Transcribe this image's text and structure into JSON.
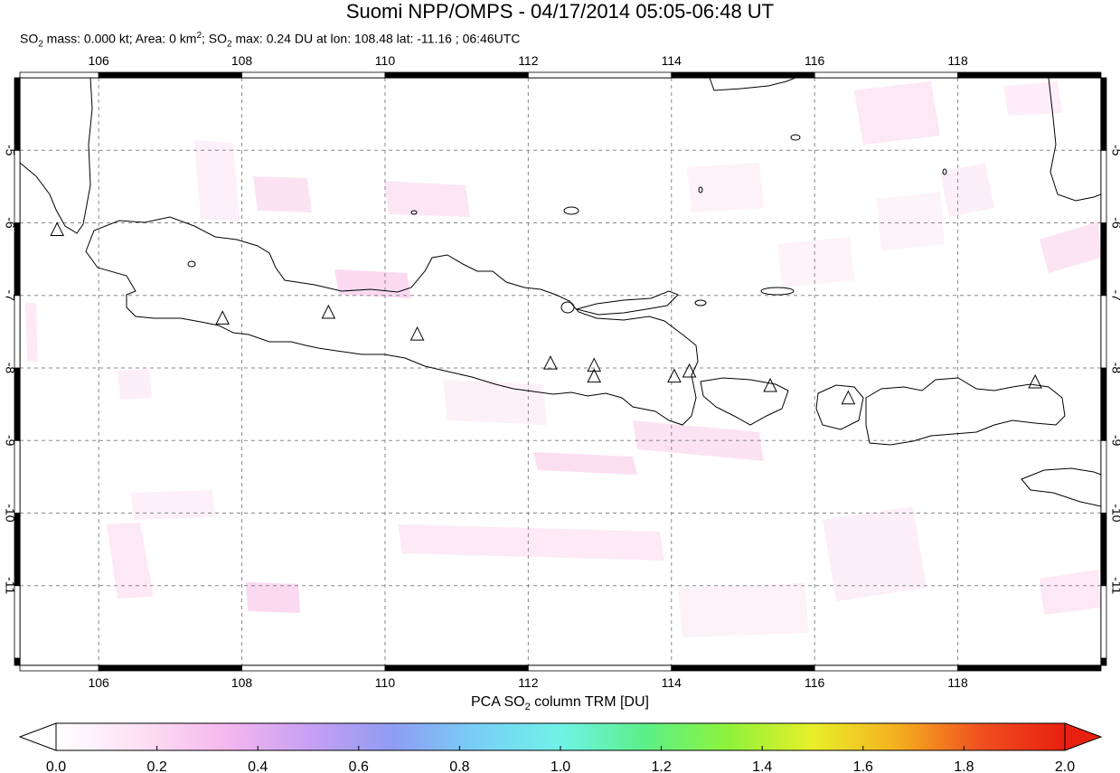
{
  "header": {
    "title": "Suomi NPP/OMPS - 04/17/2014 05:05-06:48 UT",
    "mass_label": "SO",
    "mass_sub": "2",
    "mass_text": " mass: 0.000 kt; Area: 0 km",
    "area_sup": "2",
    "sep": "; SO",
    "max_sub": "2",
    "max_text": " max: 0.24 DU at lon: 108.48 lat: -11.16 ; 06:46UTC"
  },
  "map": {
    "lon_range": [
      104.9,
      120.0
    ],
    "lat_range": [
      -12.1,
      -4.0
    ],
    "lon_ticks": [
      "106",
      "108",
      "110",
      "112",
      "114",
      "116",
      "118"
    ],
    "lat_ticks": [
      "-5",
      "-6",
      "-7",
      "-8",
      "-9",
      "-10",
      "-11"
    ],
    "grid": true,
    "volcano_icon": "triangle-icon",
    "volcanoes": [
      [
        105.42,
        -6.1
      ],
      [
        107.73,
        -7.32
      ],
      [
        109.21,
        -7.24
      ],
      [
        110.45,
        -7.54
      ],
      [
        112.31,
        -7.94
      ],
      [
        112.92,
        -7.97
      ],
      [
        112.92,
        -8.12
      ],
      [
        114.04,
        -8.12
      ],
      [
        114.25,
        -8.05
      ],
      [
        115.38,
        -8.25
      ],
      [
        116.47,
        -8.42
      ],
      [
        119.08,
        -8.2
      ]
    ]
  },
  "colorbar": {
    "title_prefix": "PCA SO",
    "title_sub": "2",
    "title_suffix": " column TRM [DU]",
    "ticks": [
      "0.0",
      "0.2",
      "0.4",
      "0.6",
      "0.8",
      "1.0",
      "1.2",
      "1.4",
      "1.6",
      "1.8",
      "2.0"
    ],
    "min": 0.0,
    "max": 2.0,
    "colors": [
      "#ffffff",
      "#fde0f4",
      "#f6b8ee",
      "#c8a0f4",
      "#8f9cf2",
      "#78cff6",
      "#6ff2e6",
      "#5cf08a",
      "#8ef23a",
      "#e8ef2a",
      "#f5b020",
      "#f05020",
      "#e82010"
    ]
  }
}
